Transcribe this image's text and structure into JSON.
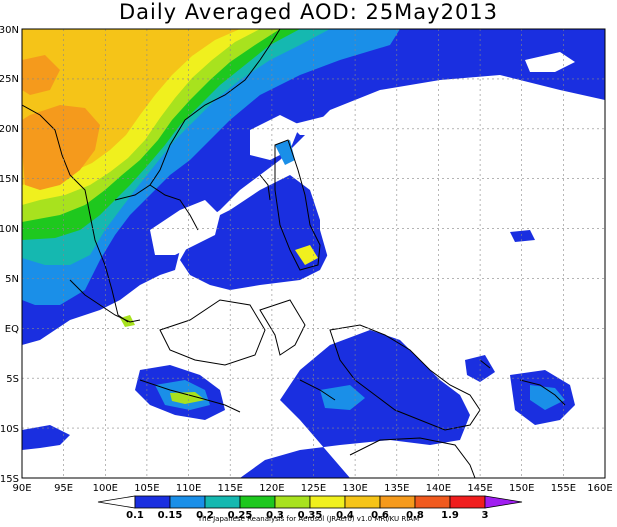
{
  "title": "Daily Averaged AOD: 25May2013",
  "lat_labels": [
    "30N",
    "25N",
    "20N",
    "15N",
    "10N",
    "5N",
    "EQ",
    "5S",
    "10S",
    "15S"
  ],
  "lon_labels": [
    "90E",
    "95E",
    "100E",
    "105E",
    "110E",
    "115E",
    "120E",
    "125E",
    "130E",
    "135E",
    "140E",
    "145E",
    "150E",
    "155E",
    "160E"
  ],
  "colorbar": {
    "labels": [
      "0.1",
      "0.15",
      "0.2",
      "0.25",
      "0.3",
      "0.35",
      "0.4",
      "0.6",
      "0.8",
      "1.9",
      "3"
    ],
    "colors": [
      "#ffffff",
      "#1a2fe0",
      "#1a8fe8",
      "#15b8b0",
      "#1ec81e",
      "#a8e21e",
      "#f0f01e",
      "#f5c418",
      "#f59a1c",
      "#f05a1e",
      "#f01e1e",
      "#a01ef0"
    ]
  },
  "credit": "The Japanese Reanalysis for Aerosol (JRAero) v1.0 MRI/KU RIAM",
  "palette": {
    "blue": "#1a2fe0",
    "cyan": "#1a8fe8",
    "teal": "#15b8b0",
    "green": "#1ec81e",
    "lime": "#a8e21e",
    "yellow": "#f0f01e",
    "gold": "#f5c418",
    "orange": "#f59a1c"
  }
}
